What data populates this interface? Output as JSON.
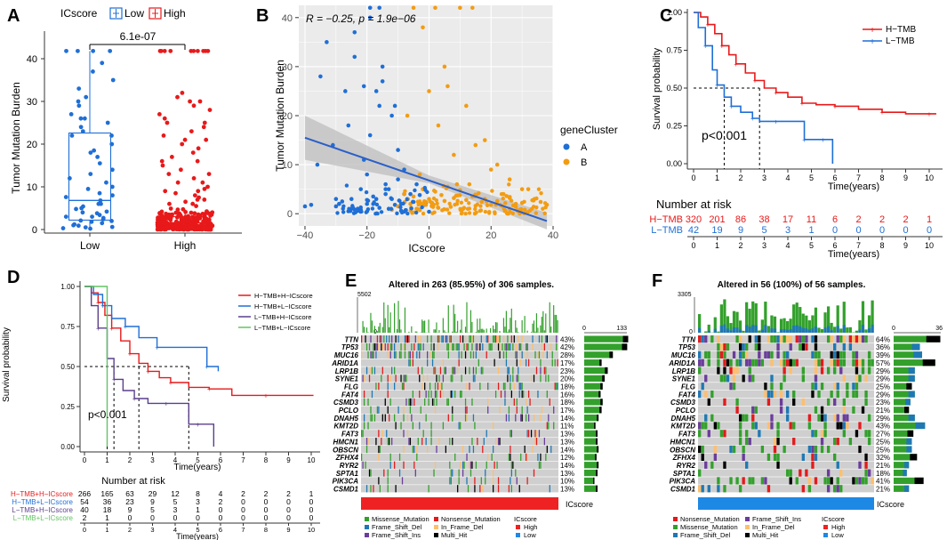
{
  "panels": {
    "A": {
      "letter": "A",
      "legend_title": "ICscore",
      "legend_items": [
        "Low",
        "High"
      ],
      "ylabel": "Tumor Mutation Burden",
      "p_label": "6.1e-07",
      "yticks": [
        "0",
        "10",
        "20",
        "30",
        "40"
      ],
      "xticks": [
        "Low",
        "High"
      ]
    },
    "B": {
      "letter": "B",
      "stats": "R = −0.25, p = 1.9e−06",
      "xlabel": "ICscore",
      "ylabel": "Tumor Mutation Burden",
      "xticks": [
        "−40",
        "−20",
        "0",
        "20",
        "40"
      ],
      "yticks": [
        "0",
        "10",
        "20",
        "30",
        "40"
      ],
      "legend_title": "geneCluster",
      "legend_items": [
        "A",
        "B"
      ]
    },
    "C": {
      "letter": "C",
      "ylabel": "Survival probability",
      "xlabel": "Time(years)",
      "yticks": [
        "0.00",
        "0.25",
        "0.50",
        "0.75",
        "1.00"
      ],
      "xticks": [
        "0",
        "1",
        "2",
        "3",
        "4",
        "5",
        "6",
        "7",
        "8",
        "9",
        "10"
      ],
      "legend": [
        "H−TMB",
        "L−TMB"
      ],
      "pval": "p<0.001",
      "risk_title": "Number at risk",
      "risk_groups": [
        "H−TMB",
        "L−TMB"
      ],
      "risk_rows": [
        [
          "320",
          "201",
          "86",
          "38",
          "17",
          "11",
          "6",
          "2",
          "2",
          "2",
          "1"
        ],
        [
          "42",
          "19",
          "9",
          "5",
          "3",
          "1",
          "0",
          "0",
          "0",
          "0",
          "0"
        ]
      ]
    },
    "D": {
      "letter": "D",
      "ylabel": "Survival probability",
      "xlabel": "Time(years)",
      "yticks": [
        "0.00",
        "0.25",
        "0.50",
        "0.75",
        "1.00"
      ],
      "xticks": [
        "0",
        "1",
        "2",
        "3",
        "4",
        "5",
        "6",
        "7",
        "8",
        "9",
        "10"
      ],
      "legend": [
        "H−TMB+H−ICscore",
        "H−TMB+L−ICscore",
        "L−TMB+H−ICscore",
        "L−TMB+L−ICscore"
      ],
      "pval": "p<0.001",
      "risk_title": "Number at risk",
      "risk_groups": [
        "H−TMB+H−ICscore",
        "H−TMB+L−ICscore",
        "L−TMB+H−ICscore",
        "L−TMB+L−ICscore"
      ],
      "risk_rows": [
        [
          "266",
          "165",
          "63",
          "29",
          "12",
          "8",
          "4",
          "2",
          "2",
          "2",
          "1"
        ],
        [
          "54",
          "36",
          "23",
          "9",
          "5",
          "3",
          "2",
          "0",
          "0",
          "0",
          "0"
        ],
        [
          "40",
          "18",
          "9",
          "5",
          "3",
          "1",
          "0",
          "0",
          "0",
          "0",
          "0"
        ],
        [
          "2",
          "1",
          "0",
          "0",
          "0",
          "0",
          "0",
          "0",
          "0",
          "0",
          "0"
        ]
      ]
    },
    "E": {
      "letter": "E",
      "title": "Altered in 263 (85.95%) of 306 samples.",
      "top_max": "5502",
      "top_min": "0",
      "bar_axis": [
        "0",
        "133"
      ],
      "icscore_label": "ICscore",
      "genes": [
        "TTN",
        "TP53",
        "MUC16",
        "ARID1A",
        "LRP1B",
        "SYNE1",
        "FLG",
        "FAT4",
        "CSMD3",
        "PCLO",
        "DNAH5",
        "KMT2D",
        "FAT3",
        "HMCN1",
        "OBSCN",
        "ZFHX4",
        "RYR2",
        "SPTA1",
        "PIK3CA",
        "CSMD1"
      ],
      "pcts": [
        "43%",
        "42%",
        "28%",
        "17%",
        "23%",
        "20%",
        "18%",
        "16%",
        "18%",
        "17%",
        "14%",
        "11%",
        "13%",
        "13%",
        "14%",
        "12%",
        "14%",
        "13%",
        "10%",
        "13%"
      ],
      "legend": {
        "col1": [
          "Missense_Mutation",
          "Frame_Shift_Del",
          "Frame_Shift_Ins"
        ],
        "col2": [
          "Nonsense_Mutation",
          "In_Frame_Del",
          "Multi_Hit"
        ],
        "ic_title": "ICscore",
        "ic_items": [
          "High",
          "Low"
        ]
      }
    },
    "F": {
      "letter": "F",
      "title": "Altered in 56 (100%) of 56 samples.",
      "top_max": "3305",
      "top_min": "0",
      "bar_axis": [
        "0",
        "36"
      ],
      "icscore_label": "ICscore",
      "genes": [
        "TTN",
        "TP53",
        "MUC16",
        "ARID1A",
        "LRP1B",
        "SYNE1",
        "FLG",
        "FAT4",
        "CSMD3",
        "PCLO",
        "DNAH5",
        "KMT2D",
        "FAT3",
        "HMCN1",
        "OBSCN",
        "ZFHX4",
        "RYR2",
        "SPTA1",
        "PIK3CA",
        "CSMD1"
      ],
      "pcts": [
        "64%",
        "36%",
        "39%",
        "57%",
        "29%",
        "29%",
        "25%",
        "29%",
        "23%",
        "21%",
        "29%",
        "43%",
        "27%",
        "25%",
        "25%",
        "32%",
        "21%",
        "18%",
        "41%",
        "21%"
      ],
      "legend": {
        "col1": [
          "Nonsense_Mutation",
          "Missense_Mutation",
          "Frame_Shift_Del"
        ],
        "col2": [
          "Frame_Shift_Ins",
          "In_Frame_Del",
          "Multi_Hit"
        ],
        "ic_title": "ICscore",
        "ic_items": [
          "High",
          "Low"
        ]
      }
    }
  },
  "colors": {
    "low_blue": "#1f6fd6",
    "high_red": "#e8191a",
    "clusterA": "#1f6fd6",
    "clusterB": "#f39c12",
    "missense": "#33a02c",
    "nonsense": "#e31a1c",
    "fs_del": "#1f78b4",
    "fs_ins": "#6a3d9a",
    "inframe": "#fdbf6f",
    "multi": "#000000",
    "ic_high": "#ee2222",
    "ic_low": "#1e88e5",
    "km_green": "#62c462",
    "km_purple": "#5b3f8c",
    "bg_cell": "#cfcfcf"
  },
  "chart_data": [
    {
      "panel": "A",
      "type": "box",
      "title": "",
      "ylabel": "Tumor Mutation Burden",
      "categories": [
        "Low",
        "High"
      ],
      "ylim": [
        0,
        42
      ],
      "series": [
        {
          "name": "Low",
          "q1": 2.2,
          "median": 6.8,
          "q3": 22.6,
          "whisker_low": 0,
          "whisker_high": 41.8
        },
        {
          "name": "High",
          "q1": 0.8,
          "median": 1.6,
          "q3": 3.0,
          "whisker_low": 0,
          "whisker_high": 4.8
        }
      ],
      "comparison_p": "6.1e-07"
    },
    {
      "panel": "B",
      "type": "scatter",
      "xlabel": "ICscore",
      "ylabel": "Tumor Mutation Burden",
      "xlim": [
        -42,
        40
      ],
      "ylim": [
        -2.5,
        42.5
      ],
      "regression": {
        "x": [
          -40,
          38
        ],
        "y": [
          15.5,
          -1.5
        ]
      },
      "R": -0.25,
      "p": "1.9e-06",
      "series": [
        {
          "name": "A",
          "x": [
            -40,
            -38,
            -36,
            -33,
            -30,
            -29,
            -27,
            -25,
            -24,
            -22,
            -21,
            -20,
            -19,
            -18,
            -17,
            -16,
            -15,
            -14,
            -13,
            -12,
            -11,
            -10,
            -9,
            -8,
            -26,
            -23,
            -19,
            -17,
            -15,
            -13,
            -30,
            -28,
            -22,
            -20,
            -18,
            -16,
            -14,
            -11,
            -9,
            -7,
            -35,
            -31,
            -26,
            -24,
            -21,
            -19,
            -16,
            -12,
            -10,
            -8,
            -6,
            -5,
            -4,
            -3,
            -2,
            -1,
            0,
            -14,
            -20,
            -25
          ],
          "y": [
            1.5,
            1.8,
            10,
            35,
            3,
            2,
            25,
            3,
            37,
            5,
            26,
            8,
            42,
            2,
            3,
            42,
            27,
            5,
            1,
            3,
            22,
            7,
            2,
            4,
            0.5,
            1,
            40,
            25,
            30,
            5,
            1.5,
            2.5,
            0.8,
            2,
            3.5,
            1.2,
            4,
            1.8,
            0.6,
            3,
            28,
            14,
            18,
            32,
            11,
            16,
            22,
            20,
            13,
            9,
            4,
            2.4,
            6,
            3.8,
            1.6,
            2.2,
            0.4,
            6,
            2.8,
            1
          ]
        },
        {
          "name": "B",
          "x": [
            -12,
            -10,
            -8,
            -6,
            -5,
            -4,
            -3,
            -2,
            -1,
            0,
            1,
            2,
            3,
            4,
            5,
            6,
            7,
            8,
            9,
            10,
            11,
            12,
            13,
            14,
            15,
            16,
            17,
            18,
            20,
            22,
            24,
            26,
            28,
            30,
            32,
            34,
            36,
            38,
            -5,
            -3,
            0,
            2,
            5,
            8,
            10,
            12,
            14,
            18,
            22,
            26,
            30,
            -7,
            -2,
            3,
            6,
            9,
            15,
            20,
            25,
            28
          ],
          "y": [
            0.8,
            1.5,
            4,
            2,
            3.5,
            1,
            2.5,
            5,
            1.8,
            3,
            2.2,
            4.5,
            1.2,
            3.8,
            2.6,
            5.5,
            1.4,
            3.2,
            2,
            4.8,
            1,
            2.8,
            6,
            3.5,
            1.6,
            4.2,
            2.4,
            3,
            1.8,
            2.6,
            4,
            3.2,
            1.4,
            2.2,
            5,
            3,
            2.4,
            1.8,
            42,
            8,
            25,
            42,
            30,
            12,
            42,
            22,
            42,
            15,
            10,
            7,
            5,
            20,
            38,
            18,
            26,
            6,
            14,
            9,
            3.6,
            2
          ]
        }
      ]
    },
    {
      "panel": "C",
      "type": "line",
      "subtype": "kaplan-meier",
      "xlabel": "Time(years)",
      "ylabel": "Survival probability",
      "xlim": [
        0,
        10.5
      ],
      "ylim": [
        0,
        1
      ],
      "p": "<0.001",
      "series": [
        {
          "name": "H−TMB",
          "x": [
            0,
            0.3,
            0.6,
            0.9,
            1.2,
            1.5,
            1.8,
            2.2,
            2.6,
            3.0,
            3.5,
            4.0,
            4.6,
            5.2,
            6.0,
            7.0,
            8.0,
            9.0,
            10.0,
            10.3
          ],
          "y": [
            1.0,
            0.97,
            0.92,
            0.86,
            0.78,
            0.72,
            0.66,
            0.6,
            0.55,
            0.5,
            0.47,
            0.44,
            0.4,
            0.39,
            0.38,
            0.36,
            0.34,
            0.33,
            0.33,
            0.33
          ]
        },
        {
          "name": "L−TMB",
          "x": [
            0,
            0.2,
            0.5,
            0.8,
            1.0,
            1.3,
            1.6,
            2.0,
            2.5,
            2.8,
            3.5,
            4.0,
            4.7,
            5.0,
            5.5,
            5.9
          ],
          "y": [
            1.0,
            0.9,
            0.78,
            0.62,
            0.52,
            0.44,
            0.38,
            0.34,
            0.3,
            0.28,
            0.28,
            0.28,
            0.16,
            0.16,
            0.16,
            0.0
          ]
        }
      ]
    },
    {
      "panel": "D",
      "type": "line",
      "subtype": "kaplan-meier",
      "xlabel": "Time(years)",
      "ylabel": "Survival probability",
      "xlim": [
        0,
        10.5
      ],
      "ylim": [
        0,
        1
      ],
      "p": "<0.001",
      "series": [
        {
          "name": "H−TMB+H−ICscore",
          "x": [
            0,
            0.3,
            0.6,
            0.9,
            1.2,
            1.6,
            2.0,
            2.4,
            2.8,
            3.3,
            3.8,
            4.6,
            5.5,
            6.5,
            8.0,
            10.1
          ],
          "y": [
            1.0,
            0.96,
            0.9,
            0.82,
            0.74,
            0.66,
            0.58,
            0.52,
            0.47,
            0.43,
            0.4,
            0.37,
            0.36,
            0.32,
            0.32,
            0.32
          ]
        },
        {
          "name": "H−TMB+L−ICscore",
          "x": [
            0,
            0.4,
            0.8,
            1.2,
            1.8,
            2.4,
            3.2,
            4.6,
            5.4,
            5.9
          ],
          "y": [
            1.0,
            0.95,
            0.88,
            0.8,
            0.75,
            0.68,
            0.62,
            0.62,
            0.5,
            0.47
          ]
        },
        {
          "name": "L−TMB+H−ICscore",
          "x": [
            0,
            0.3,
            0.6,
            1.0,
            1.3,
            1.7,
            2.2,
            2.8,
            3.6,
            4.6,
            5.0,
            5.7
          ],
          "y": [
            1.0,
            0.88,
            0.74,
            0.55,
            0.42,
            0.35,
            0.3,
            0.27,
            0.27,
            0.14,
            0.14,
            0.0
          ]
        },
        {
          "name": "L−TMB+L−ICscore",
          "x": [
            0,
            1.0,
            1.0
          ],
          "y": [
            1.0,
            1.0,
            0.0
          ]
        }
      ]
    },
    {
      "panel": "E",
      "type": "heatmap",
      "subtype": "oncoplot",
      "title": "Altered in 263 (85.95%) of 306 samples.",
      "categories": [
        "TTN",
        "TP53",
        "MUC16",
        "ARID1A",
        "LRP1B",
        "SYNE1",
        "FLG",
        "FAT4",
        "CSMD3",
        "PCLO",
        "DNAH5",
        "KMT2D",
        "FAT3",
        "HMCN1",
        "OBSCN",
        "ZFHX4",
        "RYR2",
        "SPTA1",
        "PIK3CA",
        "CSMD1"
      ],
      "values": [
        43,
        42,
        28,
        17,
        23,
        20,
        18,
        16,
        18,
        17,
        14,
        11,
        13,
        13,
        14,
        12,
        14,
        13,
        10,
        13
      ],
      "tmb_max": 5502,
      "bar_max": 133
    },
    {
      "panel": "F",
      "type": "heatmap",
      "subtype": "oncoplot",
      "title": "Altered in 56 (100%) of 56 samples.",
      "categories": [
        "TTN",
        "TP53",
        "MUC16",
        "ARID1A",
        "LRP1B",
        "SYNE1",
        "FLG",
        "FAT4",
        "CSMD3",
        "PCLO",
        "DNAH5",
        "KMT2D",
        "FAT3",
        "HMCN1",
        "OBSCN",
        "ZFHX4",
        "RYR2",
        "SPTA1",
        "PIK3CA",
        "CSMD1"
      ],
      "values": [
        64,
        36,
        39,
        57,
        29,
        29,
        25,
        29,
        23,
        21,
        29,
        43,
        27,
        25,
        25,
        32,
        21,
        18,
        41,
        21
      ],
      "tmb_max": 3305,
      "bar_max": 36
    }
  ]
}
